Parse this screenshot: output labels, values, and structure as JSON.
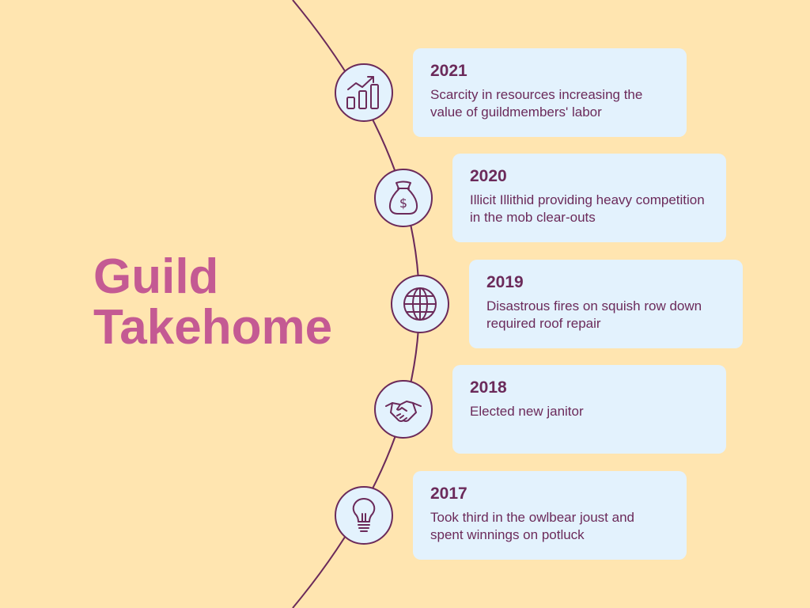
{
  "title": {
    "line1": "Guild",
    "line2": "Takehome"
  },
  "colors": {
    "background": "#ffe5b0",
    "title": "#c45a93",
    "text": "#6b2a5a",
    "card": "#e3f2fd",
    "line": "#6b2a5a"
  },
  "events": [
    {
      "year": "2021",
      "description": "Scarcity in resources increasing the value of guildmembers' labor",
      "icon": "growth-chart-icon"
    },
    {
      "year": "2020",
      "description": "Illicit Illithid providing heavy competition in the mob clear-outs",
      "icon": "money-bag-icon"
    },
    {
      "year": "2019",
      "description": "Disastrous fires on squish row down required roof repair",
      "icon": "globe-icon"
    },
    {
      "year": "2018",
      "description": "Elected new janitor",
      "icon": "handshake-icon"
    },
    {
      "year": "2017",
      "description": "Took third in the owlbear joust and spent winnings on potluck",
      "icon": "lightbulb-icon"
    }
  ]
}
